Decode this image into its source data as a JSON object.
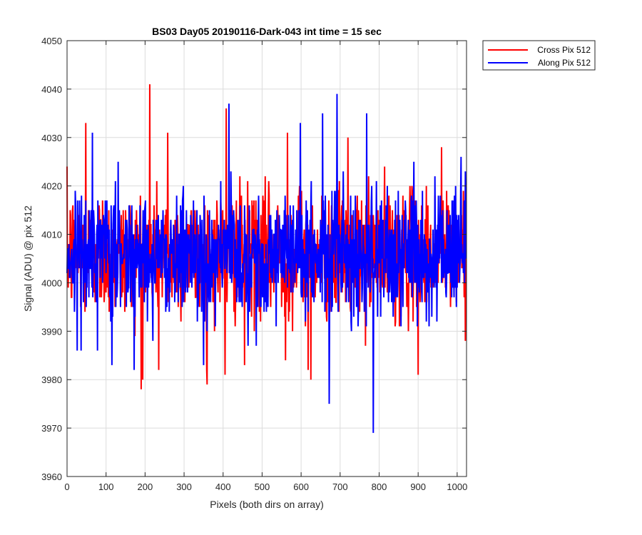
{
  "chart_data": {
    "type": "line",
    "title": "BS03 Day05 20190116-Dark-043 int time = 15 sec",
    "xlabel": "Pixels (both dirs on array)",
    "ylabel": "Signal (ADU) @ pix 512",
    "xlim": [
      0,
      1024
    ],
    "ylim": [
      3960,
      4050
    ],
    "xticks": [
      0,
      100,
      200,
      300,
      400,
      500,
      600,
      700,
      800,
      900,
      1000
    ],
    "yticks": [
      3960,
      3970,
      3980,
      3990,
      4000,
      4010,
      4020,
      4030,
      4040,
      4050
    ],
    "grid": true,
    "legend_position": "outside-top-right",
    "series": [
      {
        "name": "Cross Pix 512",
        "color": "#ff0000",
        "n_points": 1024,
        "mean": 4006,
        "std": 6.5,
        "extrema": [
          {
            "x": 48,
            "y": 4033
          },
          {
            "x": 190,
            "y": 3978
          },
          {
            "x": 212,
            "y": 4041
          },
          {
            "x": 235,
            "y": 3982
          },
          {
            "x": 258,
            "y": 4031
          },
          {
            "x": 358,
            "y": 3982
          },
          {
            "x": 405,
            "y": 3981
          },
          {
            "x": 408,
            "y": 4036
          },
          {
            "x": 455,
            "y": 3983
          },
          {
            "x": 560,
            "y": 3984
          },
          {
            "x": 565,
            "y": 4031
          },
          {
            "x": 618,
            "y": 3982
          },
          {
            "x": 625,
            "y": 3980
          },
          {
            "x": 720,
            "y": 4030
          },
          {
            "x": 900,
            "y": 3981
          },
          {
            "x": 960,
            "y": 4028
          }
        ]
      },
      {
        "name": "Along Pix 512",
        "color": "#0000ff",
        "n_points": 1024,
        "mean": 4006,
        "std": 6.5,
        "extrema": [
          {
            "x": 65,
            "y": 4031
          },
          {
            "x": 78,
            "y": 3986
          },
          {
            "x": 115,
            "y": 3983
          },
          {
            "x": 350,
            "y": 3983
          },
          {
            "x": 415,
            "y": 4037
          },
          {
            "x": 485,
            "y": 3987
          },
          {
            "x": 598,
            "y": 4033
          },
          {
            "x": 655,
            "y": 4035
          },
          {
            "x": 672,
            "y": 3975
          },
          {
            "x": 692,
            "y": 4039
          },
          {
            "x": 768,
            "y": 4035
          },
          {
            "x": 785,
            "y": 3969
          },
          {
            "x": 1010,
            "y": 4026
          }
        ]
      }
    ]
  }
}
